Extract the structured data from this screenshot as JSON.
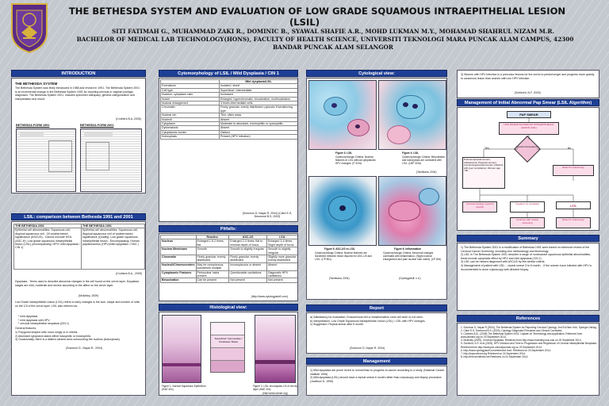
{
  "title_line1": "THE BETHESDA SYSTEM AND EVALUATION OF LOW GRADE SQUAMOUS INTRAEPITHELIAL LESION",
  "title_line2": "(LSIL)",
  "authors": "SITI FATIMAH G., MUHAMMAD ZAKI R., DOMINIC B., SYAWAL SHAFIE A.R., MOHD LUKMAN M.Y., MOHAMAD SHAHRUL NIZAM M.R.",
  "affiliation1": "BACHELOR OF MEDICAL LAB TECHNOLOGY(HONS), FACULTY OF HEALTH SCIENCE, UNIVERSITI TEKNOLOGI MARA PUNCAK ALAM CAMPUS, 42300",
  "affiliation2": "BANDAR PUNCAK ALAM SELANGOR",
  "colors": {
    "header_blue": "#1f3f96",
    "logo_purple": "#5b2a86",
    "logo_gold": "#d8b23c"
  },
  "intro": {
    "header": "INTRODUCTION",
    "subhead": "THE BETHESDA SYSTEM",
    "text": "The Bethesda System was firstly introduced in 1988 and revised in 1991. The Bethesda System 2001 is an incremental change in the Bethesda System 1991 for reporting cervical or vaginal cytologic diagnoses. The Bethesda System 2001, includes specimen adequacy, general categorization and interpretation and result.",
    "cite": "(Crothers B.A.,2005)",
    "form1991": "BETHESDA FORM 1991",
    "form2001": "BETHESDA FORM 2001"
  },
  "comparison": {
    "header": "LSIL: comparison between Bethesda 1991 and 2001",
    "col1": "THE BETHESDA 2001",
    "col2": "THE BETHESDA 1991",
    "col1_text": "Epithelial cell abnormalities: Squamous cell; Atypical squamous cell - Of undetermined significance (ASCUS) - Cannot exclude HSIL (ASC-H); Low grade squamous intraepithelial lesion (LSIL) (encompassing: HPV/ mild dysplasia / CIN 1)",
    "col2_text": "Epithelial cell abnormalities: Squamous cell; Atypical squamous cell of undetermined significance (Qualify); Low grade squamous intraepithelial lesion - Encompassing: Human papillomavirus (HPV)/mild dysplasia / CIN1 )",
    "cite": "(Crothers B.A., 2005)",
    "p1": "Dysplasia - Terms used to describe abnormal changes in the cell found on the cervix layer. Dysplasia stages are mild, moderate and severe according to the affect on the cervix layer.",
    "p1_cite": "(Mckinley, 2009)",
    "p2": "Low Grade Intraepithelial Lesion (LSIL) refers to early changes in the size, shape and number of cells on the 1/3 of the cervix layer. LSIL also referred as:",
    "bullets": [
      "mild dysplasia",
      "mild dysplasia with HPV",
      "cervical intraepithelial neoplasia (CIN 1)"
    ],
    "p3": "General features:",
    "features": [
      "Polygonal shaped cells occur singly or in sheets.",
      "Abundant cytoplasm stains either basophilic or eosinophilic",
      "Occasionally, there is a distinct cleared area surrounding the nucleus (koilocytosis)."
    ],
    "features_cite": "(Solomon D., Nayar R., 2004)"
  },
  "cytomorph": {
    "header": "Cytomorphology of LSIL / Mild Dysplasia / CIN 1",
    "col_head": "Mild dysplasia/LSIL",
    "rows": [
      [
        "Formations",
        "Isolated / sheet"
      ],
      [
        "Cell type",
        "Superficial / intermediate"
      ],
      [
        "Nucleus: cytoplasm ratio",
        "Increased"
      ],
      [
        "Nuclei",
        "Enlarged, hyperchromatic, binucleation, multinucleation"
      ],
      [
        "Nuclear enlargement",
        "3 times intermediate cells"
      ],
      [
        "Chromatin",
        "Finely granular, evenly distributed, pyknotic if keratinizing type"
      ],
      [
        "Nuclear rim",
        "Thin, often wavy"
      ],
      [
        "Nucleoli",
        "Absent"
      ],
      [
        "Cytoplasm",
        "Moderate to abundant, eosinophilic or cyanophilic"
      ],
      [
        "Dyskeratosis",
        "Absent"
      ],
      [
        "Cytoplasmic border",
        "Distinct"
      ],
      [
        "Koilocytosis",
        "Present (HPV infection)"
      ]
    ],
    "cite": "(Solomon D, Nayar R, 2004) (Clare E.S, Desmond B.S, 2003)"
  },
  "pitfalls": {
    "header": "Pitfalls:",
    "cols": [
      "",
      "Reactive",
      "ASC-US",
      "LSIL"
    ],
    "rows": [
      [
        "Nucleus",
        "Enlarged 1.5-2 times, flat",
        "Enlarged 2-3 times, flat to minimal depth of focus",
        "Enlarged 3-4 times, Slight depth of focus"
      ],
      [
        "Nuclear Membrane",
        "Smooth",
        "Smooth to slightly irregular",
        "Smooth to slightly irregular"
      ],
      [
        "Chromatin",
        "Finely granular, evenly distributed",
        "Finely granular, evenly distributed",
        "Slightly more granular, evenly distributed"
      ],
      [
        "Nucleoli/Chromocenters",
        "May be conspicuous, sometimes multiple",
        "Inconspicuous or absent",
        "Absent"
      ],
      [
        "Cytoplasmic Features",
        "Perinuclear halos present",
        "Questionable cavitations",
        "Diagnostic HPV cavitations"
      ],
      [
        "Binucleation",
        "Can be present",
        "Not present",
        "Not present"
      ]
    ],
    "cite": "(http://www.cytologystuff.com)"
  },
  "histology": {
    "header": "Histological view:",
    "caption1": "Figure 1: Normal Squamous Epithelium (H&E 40x)",
    "caption2": "Figure 2: LSIL encompass 1/3 of cervical layer (H&E 20x)",
    "diagram_label": "Superficial / Intermediate / Parabasal / Basal",
    "cite": "(http://www.wirnet.org)"
  },
  "cytological": {
    "header": "Cytological view:",
    "fig3": "Figure 3: LSIL",
    "fig3_text": "Cytomorphologic Criteria: Nuclear features of LSIL without cytoplasmic HPV changes. (P 320x)",
    "fig4": "Figure 4: LSIL",
    "fig4_text": "Cytomorphologic Criteria: Binucleation and koilocytosis are consistent with LSIL. (LBP 320x)",
    "cite1": "(Tachibana, 2004)",
    "fig5": "Figure 5: ASC-US vs LSIL",
    "fig5_text": "Cytomorphologic Criteria: Nuclear features are borderline between those required for ASC-US and LSIL. (CP 80x)",
    "fig6": "Figure 6: Inflammation",
    "fig6_text": "Cytomorphologic Criteria: Abnormal changes correlated with inflammation. (Slight nuclear enlargement and pale nuclear halo noted). (CP 80x)",
    "cite2": "(Tachibana, 2004)",
    "cite3": "(Cytologystuff, n.d.)"
  },
  "report": {
    "header": "Report",
    "items": [
      "Satisfactory for evaluation; Endocervical cell or transformation zone cell seen or not seen.",
      "Interpretation: Low Grade Squamous Intraepithelial Lesion (LSIL) / LSIL with HPV changes.",
      "Suggestion: Repeat smear after 6 month."
    ],
    "markers": [
      "a)",
      "b)",
      "c)"
    ],
    "cite": "(Solomon D, Nayar R, 2004)"
  },
  "management": {
    "header": "Management",
    "items": [
      "Mild dysplasia are prone revert to normal than to progress to cancer according to a study. (National Cancer Institute 1996)",
      "Mild dysplasia (LSIL) should have a repeat smear 6 month rather than colposcopy and biopsy procedure. (Jowitson D, 1999)"
    ]
  },
  "top_right": {
    "text": "Women with HPV infection is a precursor lesions for the cervix to persist longer and progress more quickly to cancerous lesion than women with non HPV infection.",
    "cite": "(Schlecht, N.F. 2003)"
  },
  "algorithm": {
    "header": "Management of Initial Abnormal Pap Smear (LSIL Algorithm)",
    "pap": "PAP SMEAR",
    "lsil_box": "LOW GRADE SQUAMOUS INTRAEPITHELIAL LESION (LSIL)",
    "diamond": "Special circumstances",
    "yes": "Yes",
    "no": "No",
    "left_list": "Postmenopausal women; Adolescents; Pregnant women; Immunosuppressed women; Patients with poor compliance; Women age >50",
    "refer": "Refer for colposcopy",
    "b1": "Cervical cytology repeat 6 months",
    "b2": "Negative for dysplasia",
    "b3": "LSIL",
    "b4": "Continue with routine screening",
    "b5": "Refer for colposcopy"
  },
  "summary": {
    "header": "Summary",
    "items": [
      "The Bethesda System 2001 is a modification of Bethesda 1991 were based on extensive review of the Cervical Cancer Screening, including new methodology and technology.",
      "LSIL in The Bethesda System 2001 describe a range of noninvasive squamous epithelial abnormalities, these include cytophatic effect by HPV and mild dysplasia (CIN 1)",
      "LSIL can be missed diagnosed with ASCUS by few similar criteria.",
      "Management of patient with LSIL: - repeat smear 3 to 6 month. - if the women have infected with HPV is recommended to done colposcopy with directed biopsy."
    ]
  },
  "references": {
    "header": "References",
    "items": [
      "Solomon D, Nayar R (2004), The Bethesda System for Reporting Cervical Cytology. 2nd Ed New York, Springer-Verlag.",
      "Clare E.S, Desmond B.S. (2003), Cytology Diagnostic Principles and Clinical Correlates.",
      "Crothers A.B., (2005) The Bethesda System 2001: Update on Terminology and Application. Retrieved from www.labmed.org on 23 September 2014.",
      "Mckinley (2009), Cervical Dysplasia. Retrieved from http://www.mckinley.uiuc.edu on 29 September 2014.",
      "Schlecht, N.F. et al (2003), HPV Infection and Time to Progression and Regression of Cervical Intraepithelial Neoplasia. Retrieved from http://www.jnci.oxfordjournals.org on 29 September 2014.",
      "http://www.cytologystuff.com/retrieved from. Retrieved on 23 September 2014.",
      "http://www.wirnet.org Retrieved on 24 September 2014.",
      "http://info.techtimes.net Retrieved on 24 September 2014."
    ]
  }
}
